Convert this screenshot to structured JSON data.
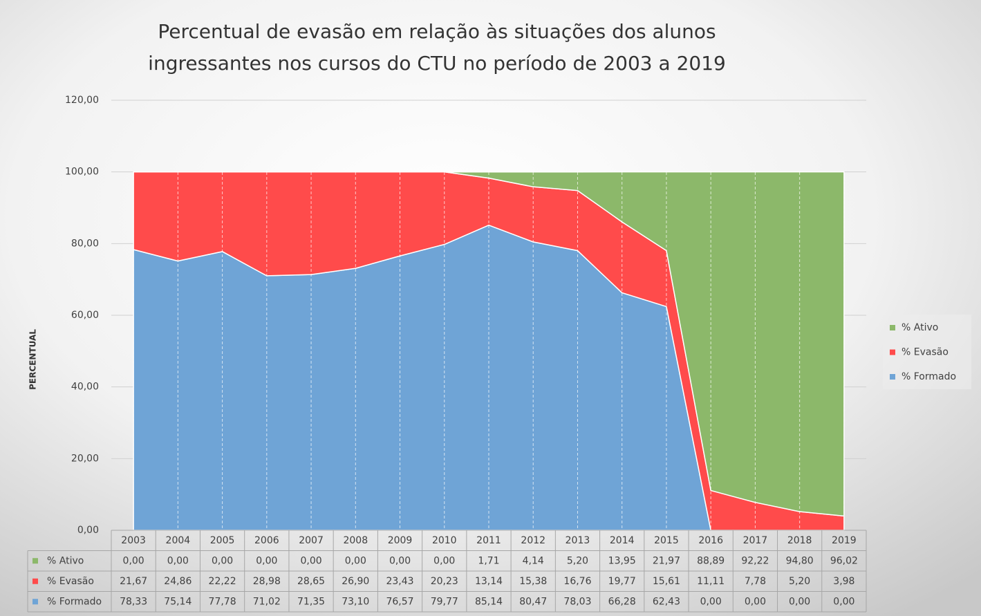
{
  "chart_data": {
    "type": "stacked_area",
    "title": [
      "Percentual de evasão em relação às situações dos alunos",
      "ingressantes nos cursos do CTU no período de 2003 a 2019"
    ],
    "ylabel": "PERCENTUAL",
    "categories": [
      "2003",
      "2004",
      "2005",
      "2006",
      "2007",
      "2008",
      "2009",
      "2010",
      "2011",
      "2012",
      "2013",
      "2014",
      "2015",
      "2016",
      "2017",
      "2018",
      "2019"
    ],
    "series": [
      {
        "name": "% Formado",
        "color": "#6fa4d6",
        "values": [
          78.33,
          75.14,
          77.78,
          71.02,
          71.35,
          73.1,
          76.57,
          79.77,
          85.14,
          80.47,
          78.03,
          66.28,
          62.43,
          0,
          0,
          0,
          0
        ],
        "value_labels": [
          "78,33",
          "75,14",
          "77,78",
          "71,02",
          "71,35",
          "73,10",
          "76,57",
          "79,77",
          "85,14",
          "80,47",
          "78,03",
          "66,28",
          "62,43",
          "0,00",
          "0,00",
          "0,00",
          "0,00"
        ]
      },
      {
        "name": "% Evasão",
        "color": "#ff4b4b",
        "values": [
          21.67,
          24.86,
          22.22,
          28.98,
          28.65,
          26.9,
          23.43,
          20.23,
          13.14,
          15.38,
          16.76,
          19.77,
          15.61,
          11.11,
          7.78,
          5.2,
          3.98
        ],
        "value_labels": [
          "21,67",
          "24,86",
          "22,22",
          "28,98",
          "28,65",
          "26,90",
          "23,43",
          "20,23",
          "13,14",
          "15,38",
          "16,76",
          "19,77",
          "15,61",
          "11,11",
          "7,78",
          "5,20",
          "3,98"
        ]
      },
      {
        "name": "% Ativo",
        "color": "#8cb86a",
        "values": [
          0,
          0,
          0,
          0,
          0,
          0,
          0,
          0,
          1.71,
          4.14,
          5.2,
          13.95,
          21.97,
          88.89,
          92.22,
          94.8,
          96.02
        ],
        "value_labels": [
          "0,00",
          "0,00",
          "0,00",
          "0,00",
          "0,00",
          "0,00",
          "0,00",
          "0,00",
          "1,71",
          "4,14",
          "5,20",
          "13,95",
          "21,97",
          "88,89",
          "92,22",
          "94,80",
          "96,02"
        ]
      }
    ],
    "ylim": [
      0,
      120
    ],
    "yticks": [
      {
        "value": 0,
        "label": "0,00"
      },
      {
        "value": 20,
        "label": "20,00"
      },
      {
        "value": 40,
        "label": "40,00"
      },
      {
        "value": 60,
        "label": "60,00"
      },
      {
        "value": 80,
        "label": "80,00"
      },
      {
        "value": 100,
        "label": "100,00"
      },
      {
        "value": 120,
        "label": "120,00"
      }
    ],
    "grid": true,
    "legend": "right"
  }
}
